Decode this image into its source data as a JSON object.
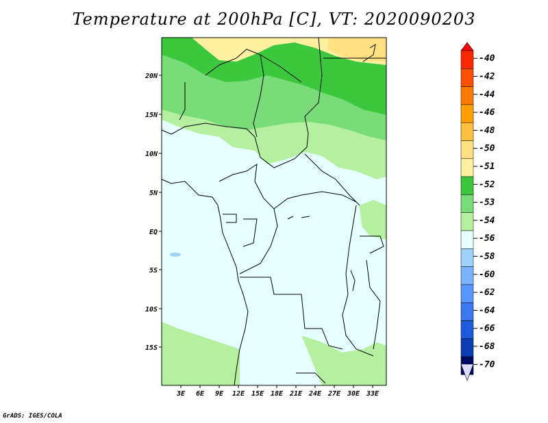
{
  "title": "Temperature at 200hPa [C], VT: 2020090203",
  "footer": "GrADS: IGES/COLA",
  "map": {
    "lat_labels": [
      "20N",
      "15N",
      "10N",
      "5N",
      "EQ",
      "5S",
      "10S",
      "15S"
    ],
    "lon_labels": [
      "3E",
      "6E",
      "9E",
      "12E",
      "15E",
      "18E",
      "21E",
      "24E",
      "27E",
      "30E",
      "33E"
    ],
    "colors": {
      "ocean_pale": "#e6ffff",
      "green_light": "#b4f0a0",
      "green_mid": "#78dc78",
      "green_dark": "#3cc83c",
      "yellow_pale": "#fff0a0",
      "yellow": "#ffe080",
      "blue_light": "#a0d2ff",
      "border": "#000000"
    }
  },
  "legend": {
    "labels": [
      "-40",
      "-42",
      "-44",
      "-46",
      "-48",
      "-50",
      "-51",
      "-52",
      "-53",
      "-54",
      "-56",
      "-58",
      "-60",
      "-62",
      "-64",
      "-66",
      "-68",
      "-70"
    ],
    "colors": [
      "#ff2800",
      "#ff5000",
      "#ff7a00",
      "#ffa000",
      "#ffc040",
      "#ffe080",
      "#fff0a0",
      "#3cc83c",
      "#78dc78",
      "#b4f0a0",
      "#e6ffff",
      "#a0d2ff",
      "#78b4ff",
      "#5a96ff",
      "#3c78f0",
      "#1e5adc",
      "#0a3cb4",
      "#000a64"
    ],
    "top_cap_color": "#ff0000",
    "bottom_cap_color": "#dcdcff"
  }
}
